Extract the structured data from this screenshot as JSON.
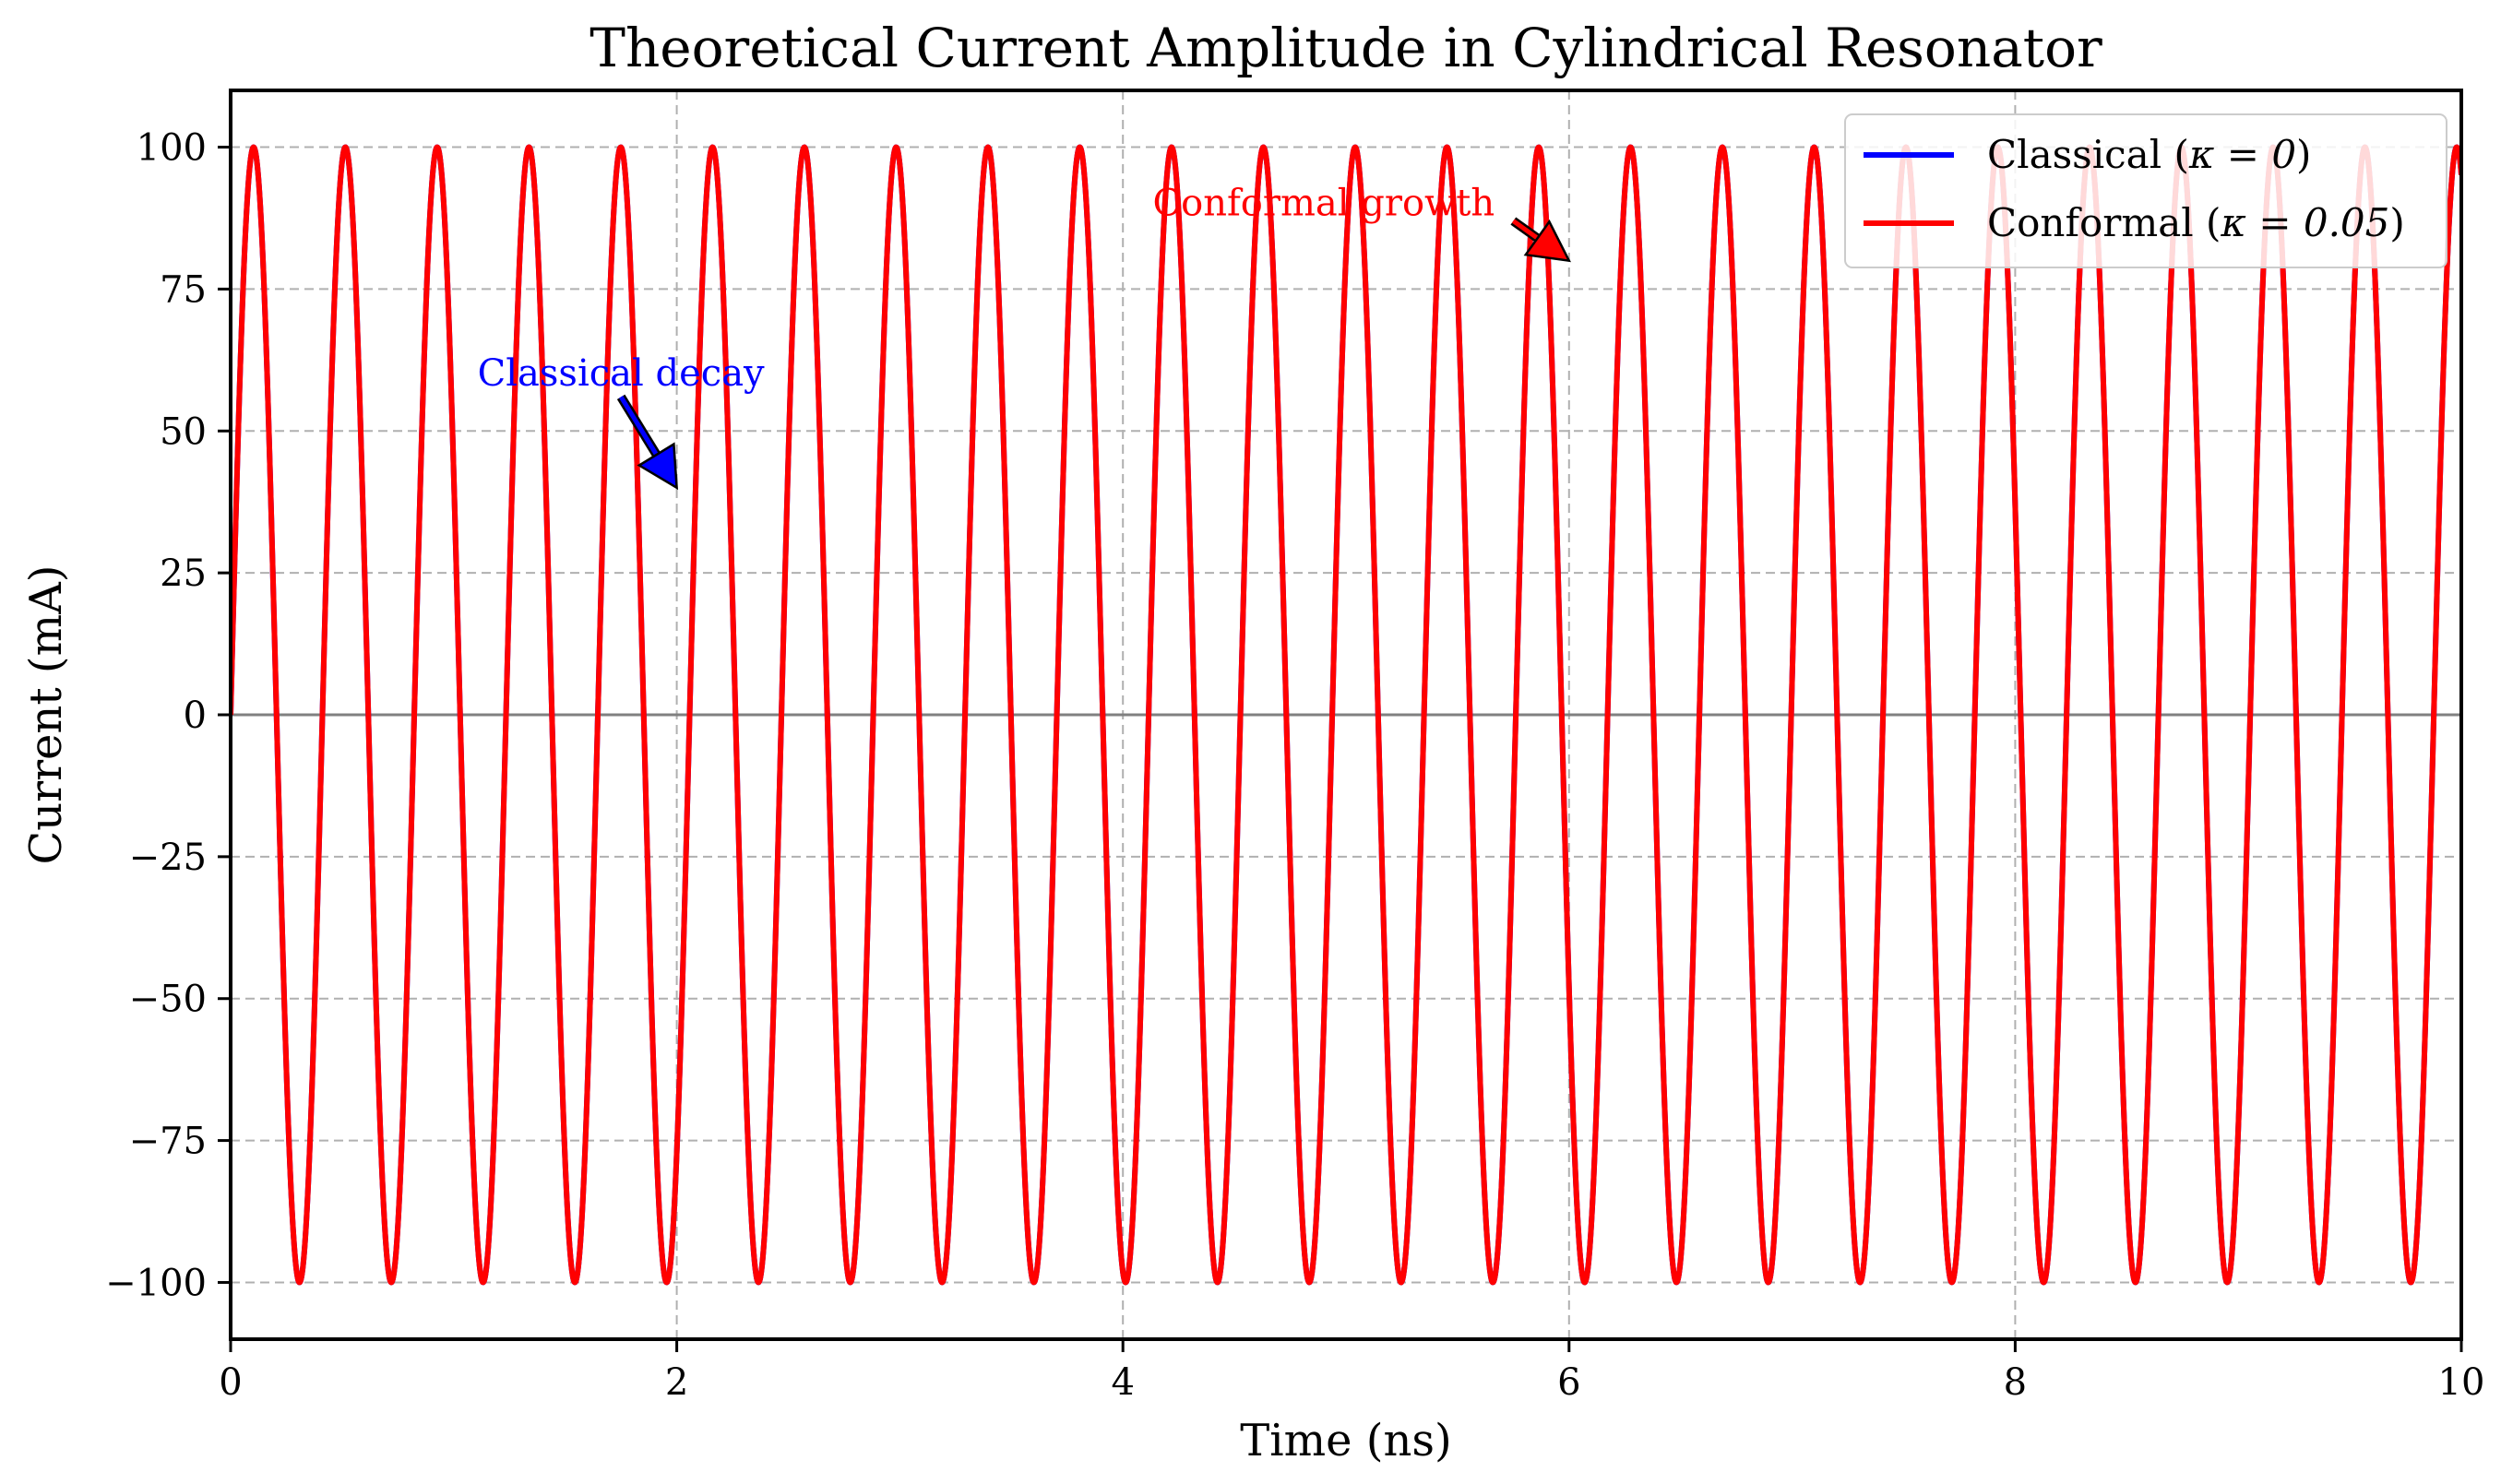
{
  "chart_data": {
    "type": "line",
    "title": "Theoretical Current Amplitude in Cylindrical Resonator",
    "xlabel": "Time (ns)",
    "ylabel": "Current (mA)",
    "xlim": [
      0,
      10
    ],
    "ylim": [
      -110,
      110
    ],
    "xticks": [
      0,
      2,
      4,
      6,
      8,
      10
    ],
    "xtick_labels": [
      "0",
      "2",
      "4",
      "6",
      "8",
      "10"
    ],
    "yticks": [
      -100,
      -75,
      -50,
      -25,
      0,
      25,
      50,
      75,
      100
    ],
    "ytick_labels": [
      "−100",
      "−75",
      "−50",
      "−25",
      "0",
      "25",
      "50",
      "75",
      "100"
    ],
    "grid": true,
    "grid_style": "dashed",
    "zero_line": true,
    "legend_position": "top-right",
    "series": [
      {
        "name": "Classical",
        "legend_label": "Classical (",
        "legend_kappa": "κ = 0",
        "legend_close": ")",
        "function": "100*sin(2*pi*f*t)*exp(-kappa*t)",
        "amplitude": 100,
        "frequency_ghz": 2.43,
        "kappa": 0,
        "color": "#0000ff"
      },
      {
        "name": "Conformal",
        "legend_label": "Conformal (",
        "legend_kappa": "κ = 0.05",
        "legend_close": ")",
        "function": "100*sin(2*pi*f*t)",
        "amplitude": 100,
        "frequency_ghz": 2.43,
        "kappa": 0.05,
        "color": "#ff0000"
      }
    ],
    "annotations": [
      {
        "text": "Classical decay",
        "color": "#0000ff",
        "text_at": [
          1.75,
          58
        ],
        "arrow_from": [
          1.75,
          56
        ],
        "arrow_to": [
          2.0,
          40
        ]
      },
      {
        "text": "Conformal growth",
        "color": "#ff0000",
        "text_at": [
          4.9,
          88
        ],
        "arrow_from": [
          5.75,
          87
        ],
        "arrow_to": [
          6.0,
          80
        ]
      }
    ]
  }
}
